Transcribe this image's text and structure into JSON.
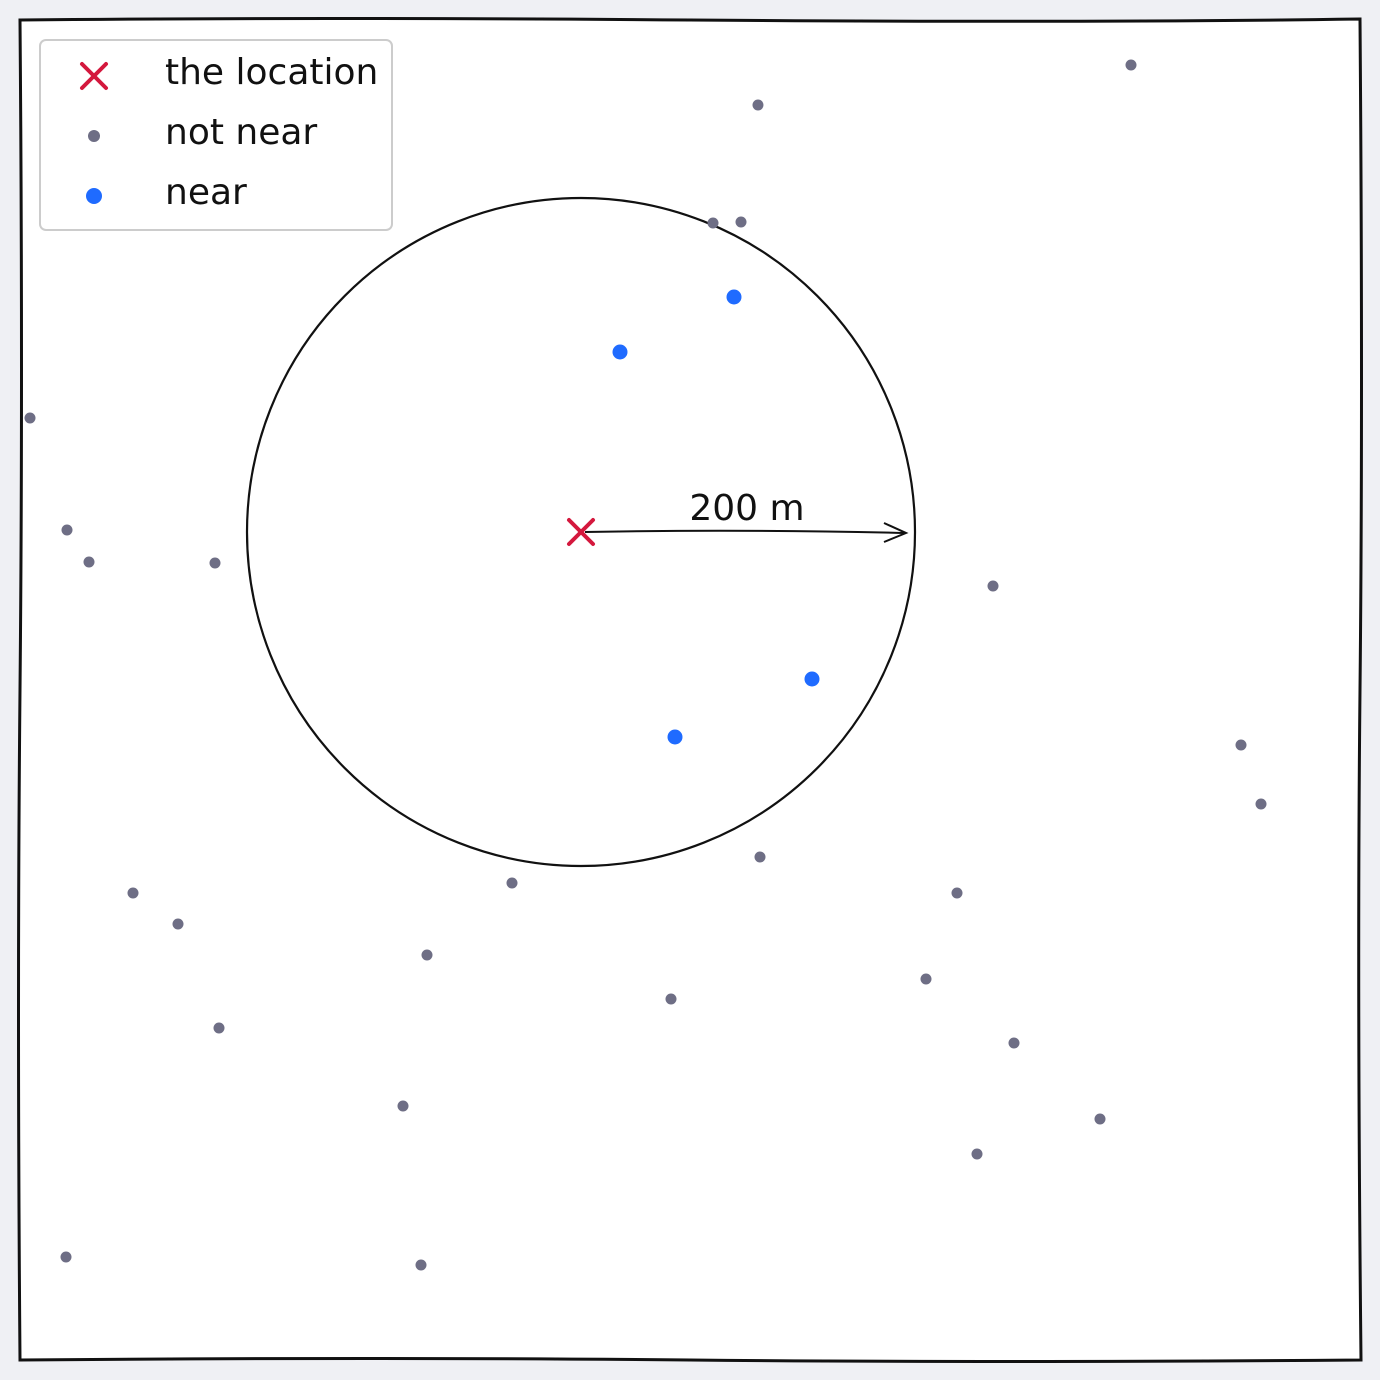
{
  "legend": {
    "items": [
      {
        "label": "the location"
      },
      {
        "label": "not near"
      },
      {
        "label": "near"
      }
    ]
  },
  "annotation": {
    "radius_label": "200 m"
  }
}
